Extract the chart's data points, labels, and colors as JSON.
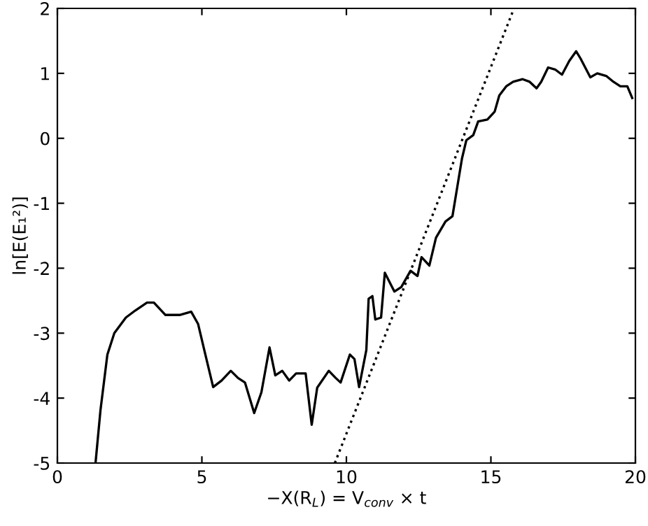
{
  "chart_data": {
    "type": "line",
    "xlabel": "−X(R$_{L}$) = V$_{conv}$ × t",
    "ylabel": "ln[E(E₁²)]",
    "xlim": [
      0,
      20
    ],
    "ylim": [
      -5,
      2
    ],
    "xticks": [
      0,
      5,
      10,
      15,
      20
    ],
    "yticks": [
      -5,
      -4,
      -3,
      -2,
      -1,
      0,
      1,
      2
    ],
    "grid": false,
    "legend": false,
    "series": [
      {
        "color": "#000000",
        "line_style": "solid",
        "x": [
          1.32,
          1.49,
          1.73,
          1.97,
          2.37,
          2.7,
          3.1,
          3.34,
          3.74,
          4.23,
          4.63,
          4.87,
          5.12,
          5.39,
          5.68,
          6.0,
          6.25,
          6.49,
          6.81,
          7.06,
          7.34,
          7.54,
          7.78,
          8.02,
          8.26,
          8.59,
          8.8,
          8.99,
          9.39,
          9.63,
          9.8,
          10.12,
          10.28,
          10.44,
          10.69,
          10.77,
          10.9,
          11.0,
          11.2,
          11.33,
          11.66,
          11.9,
          12.22,
          12.46,
          12.6,
          12.87,
          13.1,
          13.43,
          13.67,
          13.84,
          14.0,
          14.15,
          14.39,
          14.56,
          14.88,
          15.13,
          15.29,
          15.53,
          15.77,
          16.1,
          16.34,
          16.58,
          16.74,
          16.98,
          17.22,
          17.46,
          17.71,
          17.95,
          18.1,
          18.44,
          18.68,
          18.99,
          19.24,
          19.48,
          19.72,
          19.89
        ],
        "values": [
          -5.0,
          -4.19,
          -3.33,
          -3.0,
          -2.76,
          -2.65,
          -2.53,
          -2.53,
          -2.72,
          -2.72,
          -2.67,
          -2.86,
          -3.33,
          -3.83,
          -3.73,
          -3.58,
          -3.69,
          -3.76,
          -4.23,
          -3.91,
          -3.22,
          -3.65,
          -3.58,
          -3.73,
          -3.62,
          -3.62,
          -4.41,
          -3.84,
          -3.58,
          -3.69,
          -3.76,
          -3.33,
          -3.4,
          -3.83,
          -3.26,
          -2.47,
          -2.43,
          -2.79,
          -2.76,
          -2.07,
          -2.36,
          -2.29,
          -2.04,
          -2.12,
          -1.83,
          -1.96,
          -1.53,
          -1.28,
          -1.2,
          -0.74,
          -0.31,
          -0.03,
          0.05,
          0.26,
          0.29,
          0.41,
          0.66,
          0.8,
          0.87,
          0.91,
          0.87,
          0.77,
          0.87,
          1.09,
          1.06,
          0.98,
          1.19,
          1.34,
          1.23,
          0.94,
          1.0,
          0.96,
          0.87,
          0.8,
          0.8,
          0.62
        ]
      },
      {
        "color": "#000000",
        "line_style": "dotted",
        "x": [
          9.6,
          15.8
        ],
        "values": [
          -5,
          2
        ]
      }
    ]
  }
}
